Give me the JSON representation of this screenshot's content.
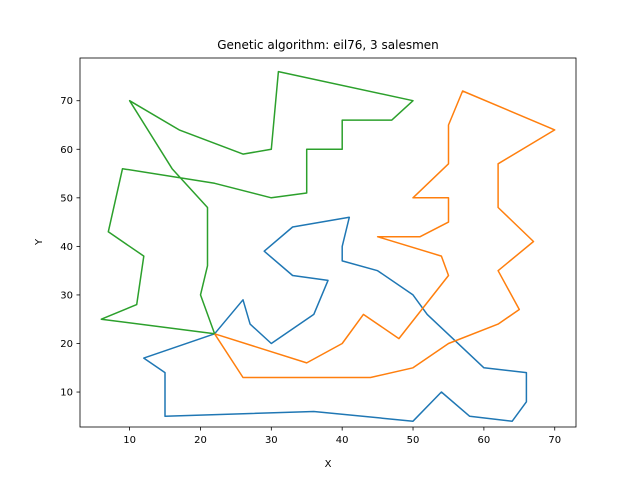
{
  "chart_data": {
    "type": "line",
    "title": "Genetic algorithm: eil76, 3 salesmen",
    "xlabel": "X",
    "ylabel": "Y",
    "xlim": [
      3,
      73
    ],
    "ylim": [
      2.8,
      78.8
    ],
    "xticks": [
      10,
      20,
      30,
      40,
      50,
      60,
      70
    ],
    "yticks": [
      10,
      20,
      30,
      40,
      50,
      60,
      70
    ],
    "grid": false,
    "legend": "none",
    "series": [
      {
        "color": "#1f77b4",
        "points": [
          [
            22,
            22
          ],
          [
            12,
            17
          ],
          [
            15,
            14
          ],
          [
            15,
            5
          ],
          [
            36,
            6
          ],
          [
            50,
            4
          ],
          [
            54,
            10
          ],
          [
            58,
            5
          ],
          [
            64,
            4
          ],
          [
            66,
            8
          ],
          [
            66,
            14
          ],
          [
            60,
            15
          ],
          [
            52,
            26
          ],
          [
            50,
            30
          ],
          [
            45,
            35
          ],
          [
            40,
            37
          ],
          [
            40,
            40
          ],
          [
            41,
            46
          ],
          [
            33,
            44
          ],
          [
            29,
            39
          ],
          [
            33,
            34
          ],
          [
            38,
            33
          ],
          [
            36,
            26
          ],
          [
            30,
            20
          ],
          [
            27,
            24
          ],
          [
            26,
            29
          ],
          [
            22,
            22
          ]
        ]
      },
      {
        "color": "#ff7f0e",
        "points": [
          [
            22,
            22
          ],
          [
            26,
            13
          ],
          [
            44,
            13
          ],
          [
            50,
            15
          ],
          [
            55,
            20
          ],
          [
            62,
            24
          ],
          [
            65,
            27
          ],
          [
            62,
            35
          ],
          [
            67,
            41
          ],
          [
            62,
            48
          ],
          [
            62,
            57
          ],
          [
            70,
            64
          ],
          [
            57,
            72
          ],
          [
            55,
            65
          ],
          [
            55,
            57
          ],
          [
            50,
            50
          ],
          [
            55,
            50
          ],
          [
            55,
            45
          ],
          [
            51,
            42
          ],
          [
            45,
            42
          ],
          [
            54,
            38
          ],
          [
            55,
            34
          ],
          [
            48,
            21
          ],
          [
            43,
            26
          ],
          [
            40,
            20
          ],
          [
            35,
            16
          ],
          [
            22,
            22
          ]
        ]
      },
      {
        "color": "#2ca02c",
        "points": [
          [
            22,
            22
          ],
          [
            6,
            25
          ],
          [
            11,
            28
          ],
          [
            12,
            38
          ],
          [
            7,
            43
          ],
          [
            9,
            56
          ],
          [
            22,
            53
          ],
          [
            30,
            50
          ],
          [
            35,
            51
          ],
          [
            35,
            60
          ],
          [
            40,
            60
          ],
          [
            40,
            66
          ],
          [
            47,
            66
          ],
          [
            50,
            70
          ],
          [
            31,
            76
          ],
          [
            30,
            60
          ],
          [
            26,
            59
          ],
          [
            17,
            64
          ],
          [
            10,
            70
          ],
          [
            16,
            56
          ],
          [
            21,
            48
          ],
          [
            21,
            36
          ],
          [
            20,
            30
          ],
          [
            22,
            22
          ]
        ]
      }
    ]
  }
}
